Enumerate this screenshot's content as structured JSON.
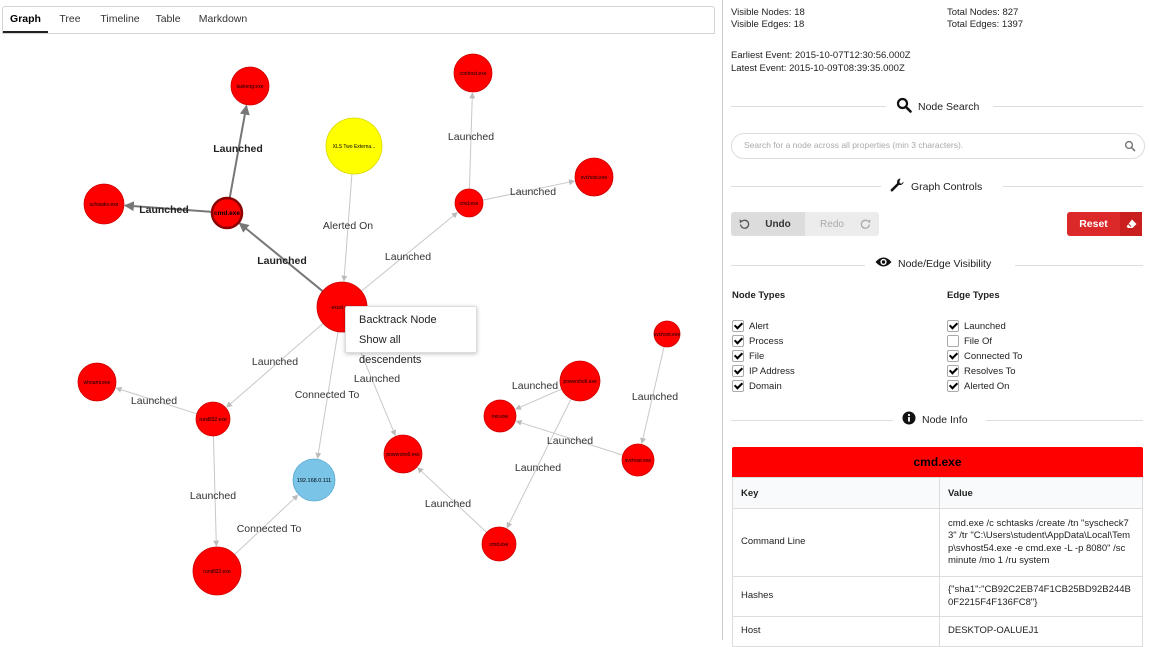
{
  "tabs": [
    {
      "label": "Graph",
      "active": true
    },
    {
      "label": "Tree",
      "active": false
    },
    {
      "label": "Timeline",
      "active": false
    },
    {
      "label": "Table",
      "active": false
    },
    {
      "label": "Markdown",
      "active": false
    }
  ],
  "graph": {
    "colors": {
      "process": "#ff0000",
      "alert": "#ffff00",
      "ip": "#7ac4e8",
      "selected_border": "#8b0000"
    },
    "nodes": [
      {
        "id": "n_top_left",
        "type": "process",
        "label": "taskeng.exe"
      },
      {
        "id": "n_alert",
        "type": "alert",
        "label": "XLS Two Externa..."
      },
      {
        "id": "n_cmd",
        "type": "process",
        "label": "cmd.exe",
        "selected": true
      },
      {
        "id": "n_left",
        "type": "process",
        "label": "schtasks.exe"
      },
      {
        "id": "n_top_mid",
        "type": "process",
        "label": "conhost.exe"
      },
      {
        "id": "n_mid_right",
        "type": "process",
        "label": "cmd.exe"
      },
      {
        "id": "n_right_top",
        "type": "process",
        "label": "svchost.exe"
      },
      {
        "id": "n_center",
        "type": "process",
        "label": "excel.exe"
      },
      {
        "id": "n_far_right",
        "type": "process",
        "label": "svchost.exe"
      },
      {
        "id": "n_l1",
        "type": "process",
        "label": "whoami.exe"
      },
      {
        "id": "n_l2",
        "type": "process",
        "label": "rundll32.exe"
      },
      {
        "id": "n_ip",
        "type": "ip",
        "label": "192.168.0.111"
      },
      {
        "id": "n_c1",
        "type": "process",
        "label": "powershell.exe"
      },
      {
        "id": "n_bottom_left",
        "type": "process",
        "label": "rundll32.exe"
      },
      {
        "id": "n_r1",
        "type": "process",
        "label": "net.exe"
      },
      {
        "id": "n_r2",
        "type": "process",
        "label": "powershell.exe"
      },
      {
        "id": "n_r3",
        "type": "process",
        "label": "svchost.exe"
      },
      {
        "id": "n_r4",
        "type": "process",
        "label": "cmd.exe"
      }
    ],
    "edges": [
      {
        "from": "n_cmd",
        "to": "n_top_left",
        "label": "Launched",
        "bold": true
      },
      {
        "from": "n_cmd",
        "to": "n_left",
        "label": "Launched",
        "bold": true
      },
      {
        "from": "n_center",
        "to": "n_cmd",
        "label": "Launched",
        "bold": true
      },
      {
        "from": "n_alert",
        "to": "n_center",
        "label": "Alerted On"
      },
      {
        "from": "n_mid_right",
        "to": "n_top_mid",
        "label": "Launched"
      },
      {
        "from": "n_mid_right",
        "to": "n_right_top",
        "label": "Launched"
      },
      {
        "from": "n_center",
        "to": "n_mid_right",
        "label": "Launched"
      },
      {
        "from": "n_center",
        "to": "n_l2",
        "label": "Launched"
      },
      {
        "from": "n_l2",
        "to": "n_l1",
        "label": "Launched"
      },
      {
        "from": "n_center",
        "to": "n_ip",
        "label": "Connected To"
      },
      {
        "from": "n_center",
        "to": "n_c1",
        "label": "Launched"
      },
      {
        "from": "n_l2",
        "to": "n_bottom_left",
        "label": "Launched"
      },
      {
        "from": "n_bottom_left",
        "to": "n_ip",
        "label": "Connected To"
      },
      {
        "from": "n_r2",
        "to": "n_r1",
        "label": "Launched"
      },
      {
        "from": "n_far_right",
        "to": "n_r3",
        "label": "Launched"
      },
      {
        "from": "n_r3",
        "to": "n_r1",
        "label": "Launched"
      },
      {
        "from": "n_r2",
        "to": "n_r4",
        "label": "Launched"
      },
      {
        "from": "n_r4",
        "to": "n_c1",
        "label": "Launched"
      }
    ]
  },
  "context_menu": {
    "items": [
      "Backtrack Node",
      "Show all descendents"
    ]
  },
  "stats": {
    "visible_nodes": "Visible Nodes: 18",
    "visible_edges": "Visible Edges: 18",
    "total_nodes": "Total Nodes: 827",
    "total_edges": "Total Edges: 1397",
    "earliest": "Earliest Event: 2015-10-07T12:30:56.000Z",
    "latest": "Latest Event: 2015-10-09T08:39:35.000Z"
  },
  "node_search": {
    "title": "Node Search",
    "placeholder": "Search for a node across all properties (min 3 characters)."
  },
  "graph_controls": {
    "title": "Graph Controls",
    "undo": "Undo",
    "redo": "Redo",
    "reset": "Reset"
  },
  "visibility": {
    "title": "Node/Edge Visibility",
    "node_types_label": "Node Types",
    "edge_types_label": "Edge Types",
    "node_types": [
      {
        "label": "Alert",
        "checked": true
      },
      {
        "label": "Process",
        "checked": true
      },
      {
        "label": "File",
        "checked": true
      },
      {
        "label": "IP Address",
        "checked": true
      },
      {
        "label": "Domain",
        "checked": true
      }
    ],
    "edge_types": [
      {
        "label": "Launched",
        "checked": true
      },
      {
        "label": "File Of",
        "checked": false
      },
      {
        "label": "Connected To",
        "checked": true
      },
      {
        "label": "Resolves To",
        "checked": true
      },
      {
        "label": "Alerted On",
        "checked": true
      }
    ]
  },
  "node_info": {
    "title": "Node Info",
    "node_name": "cmd.exe",
    "header_color": "#ff0000",
    "col_key": "Key",
    "col_value": "Value",
    "rows": [
      {
        "key": "Command Line",
        "value": "cmd.exe /c schtasks /create /tn \"syscheck73\" /tr \"C:\\Users\\student\\AppData\\Local\\Temp\\svhost54.exe -e cmd.exe -L -p 8080\" /sc minute /mo 1 /ru system"
      },
      {
        "key": "Hashes",
        "value": "{\"sha1\":\"CB92C2EB74F1CB25BD92B244B0F2215F4F136FC8\"}"
      },
      {
        "key": "Host",
        "value": "DESKTOP-OALUEJ1"
      }
    ]
  }
}
